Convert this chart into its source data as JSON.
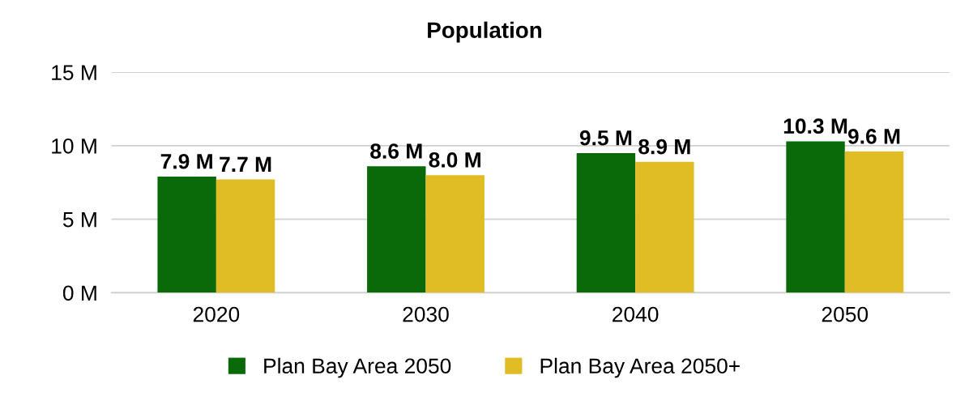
{
  "chart_data": {
    "type": "bar",
    "title": "Population",
    "categories": [
      "2020",
      "2030",
      "2040",
      "2050"
    ],
    "series": [
      {
        "name": "Plan Bay Area 2050",
        "color": "#0a6a0a",
        "values": [
          7.9,
          8.6,
          9.5,
          10.3
        ],
        "value_labels": [
          "7.9 M",
          "8.6 M",
          "9.5 M",
          "10.3 M"
        ]
      },
      {
        "name": "Plan Bay Area 2050+",
        "color": "#e0bd25",
        "values": [
          7.7,
          8.0,
          8.9,
          9.6
        ],
        "value_labels": [
          "7.7 M",
          "8.0 M",
          "8.9 M",
          "9.6 M"
        ]
      }
    ],
    "ylim": [
      0,
      15
    ],
    "yticks": [
      {
        "value": 0,
        "label": "0 M"
      },
      {
        "value": 5,
        "label": "5 M"
      },
      {
        "value": 10,
        "label": "10 M"
      },
      {
        "value": 15,
        "label": "15 M"
      }
    ],
    "grid": "y",
    "legend": "bottom"
  }
}
